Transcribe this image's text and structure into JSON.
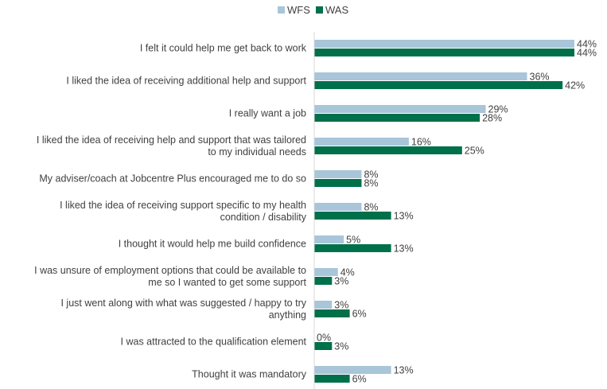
{
  "chart_data": {
    "type": "bar",
    "orientation": "horizontal",
    "title": "",
    "xlabel": "",
    "ylabel": "",
    "xlim": [
      0,
      50
    ],
    "grid": false,
    "legend_position": "top",
    "value_suffix": "%",
    "categories": [
      [
        "I felt it could help me get back to work"
      ],
      [
        "I liked the idea of receiving additional help and support"
      ],
      [
        "I really want a job"
      ],
      [
        "I liked the idea of receiving help and support that was tailored",
        "to my individual needs"
      ],
      [
        "My adviser/coach at Jobcentre Plus encouraged me to do so"
      ],
      [
        "I liked the idea of receiving support specific to my health",
        "condition / disability"
      ],
      [
        "I thought it would help me build confidence"
      ],
      [
        "I was unsure of employment options that could be available to",
        "me so I wanted to get some support"
      ],
      [
        "I just went along with what was suggested / happy to try",
        "anything"
      ],
      [
        "I was attracted to the qualification element"
      ],
      [
        "Thought it was mandatory"
      ]
    ],
    "series": [
      {
        "name": "WFS",
        "color": "#a8c5d9",
        "values": [
          44,
          36,
          29,
          16,
          8,
          8,
          5,
          4,
          3,
          0,
          13
        ]
      },
      {
        "name": "WAS",
        "color": "#00704a",
        "values": [
          44,
          42,
          28,
          25,
          8,
          13,
          13,
          3,
          6,
          3,
          6
        ]
      }
    ]
  }
}
